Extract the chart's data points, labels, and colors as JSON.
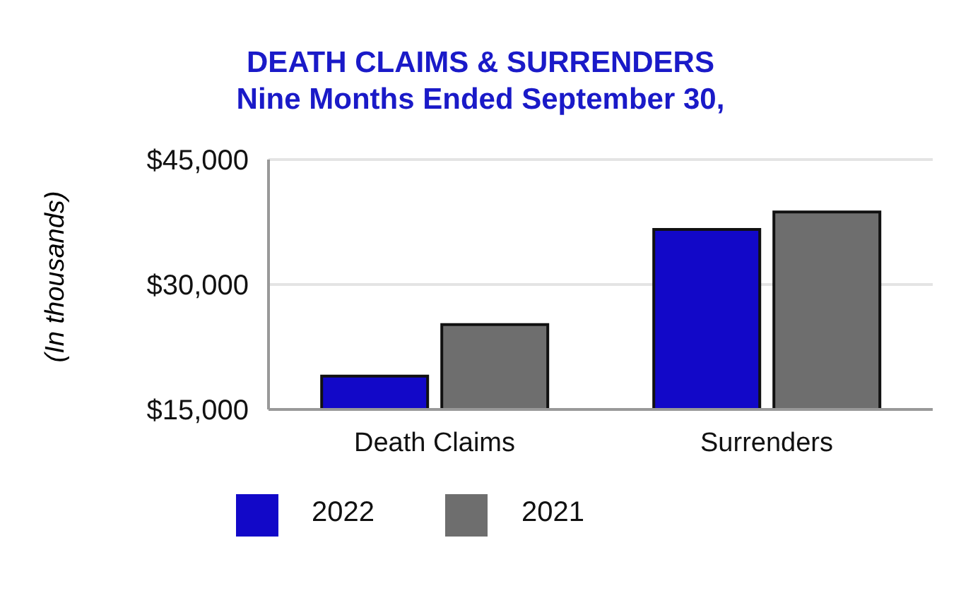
{
  "chart_data": {
    "type": "bar",
    "title": "DEATH CLAIMS & SURRENDERS",
    "subtitle": "Nine Months Ended September 30,",
    "ylabel": "(In thousands)",
    "categories": [
      "Death Claims",
      "Surrenders"
    ],
    "series": [
      {
        "name": "2022",
        "color": "#1208c8",
        "values": [
          19000,
          36600
        ]
      },
      {
        "name": "2021",
        "color": "#6e6e6e",
        "values": [
          25200,
          38700
        ]
      }
    ],
    "ylim": [
      15000,
      45000
    ],
    "yticks": [
      {
        "value": 15000,
        "label": "$15,000"
      },
      {
        "value": 30000,
        "label": "$30,000"
      },
      {
        "value": 45000,
        "label": "$45,000"
      }
    ],
    "grid": "y",
    "legend": "bottom"
  }
}
